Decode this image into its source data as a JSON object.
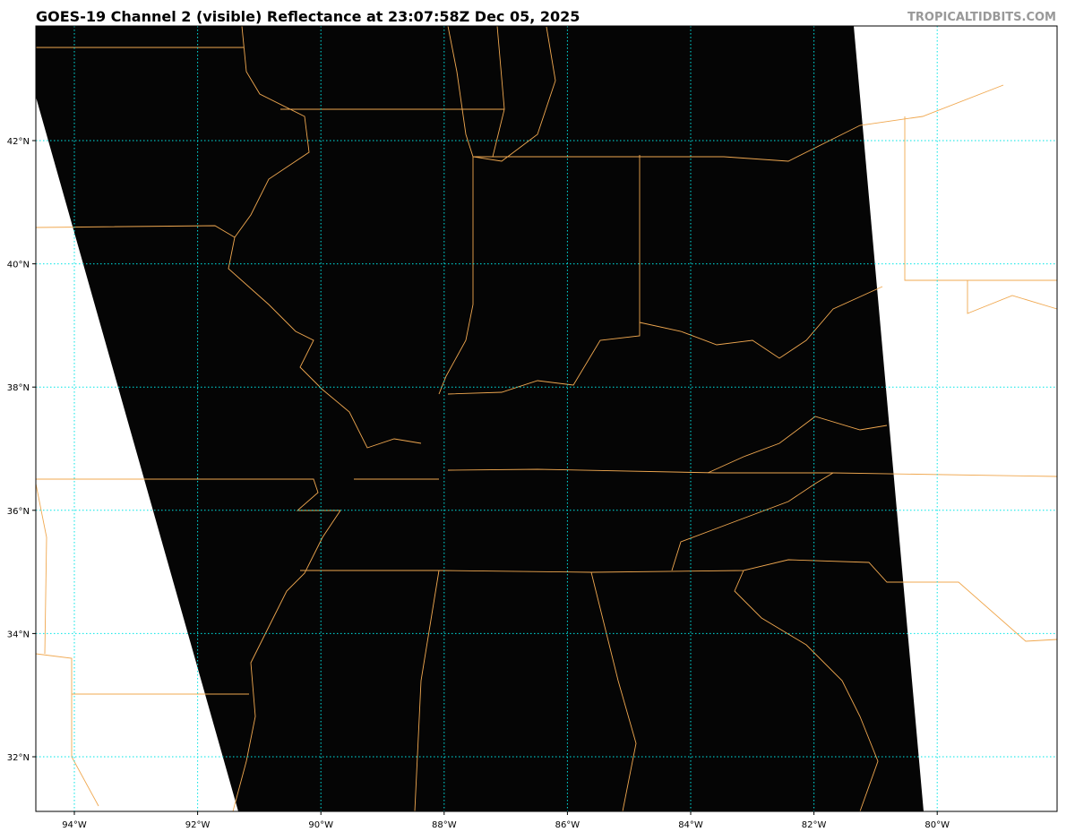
{
  "header": {
    "title": "GOES-19 Channel 2 (visible) Reflectance at 23:07:58Z Dec 05, 2025",
    "brand": "TROPICALTIDBITS.COM"
  },
  "map": {
    "lon_labels": [
      "94°W",
      "92°W",
      "90°W",
      "88°W",
      "86°W",
      "84°W",
      "82°W",
      "80°W"
    ],
    "lon_values": [
      -94,
      -92,
      -90,
      -88,
      -86,
      -84,
      -82,
      -80
    ],
    "lat_labels": [
      "42°N",
      "40°N",
      "38°N",
      "36°N",
      "34°N",
      "32°N"
    ],
    "lat_values": [
      42,
      40,
      38,
      36,
      34,
      32
    ],
    "colors": {
      "imagery": "#000000",
      "no_data": "#ffffff",
      "borders": "#f0a850",
      "gridlines": "#00e5e5"
    }
  }
}
